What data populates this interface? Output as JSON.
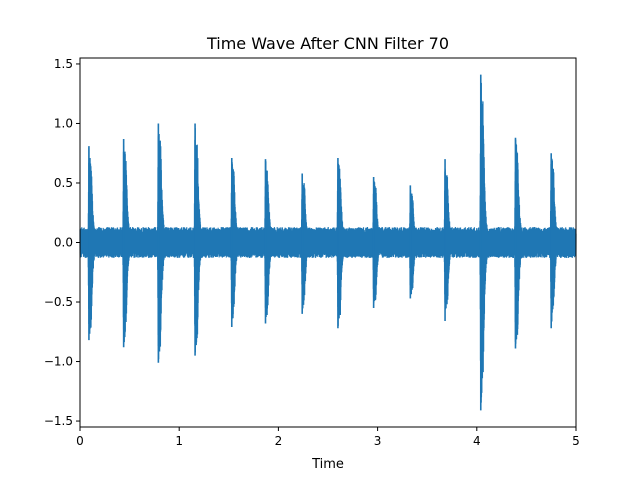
{
  "chart_data": {
    "type": "line",
    "title": "Time Wave After CNN Filter 70",
    "xlabel": "Time",
    "ylabel": "",
    "xlim": [
      0,
      5
    ],
    "ylim": [
      -1.55,
      1.55
    ],
    "x_ticks": [
      0,
      1,
      2,
      3,
      4,
      5
    ],
    "x_tick_labels": [
      "0",
      "1",
      "2",
      "3",
      "4",
      "5"
    ],
    "y_ticks": [
      -1.5,
      -1.0,
      -0.5,
      0.0,
      0.5,
      1.0,
      1.5
    ],
    "y_tick_labels": [
      "−1.5",
      "−1.0",
      "−0.5",
      "0.0",
      "0.5",
      "1.0",
      "1.5"
    ],
    "grid": false,
    "color": "#1f77b4",
    "baseline_noise_amplitude": 0.13,
    "series": [
      {
        "bursts": [
          {
            "t": 0.09,
            "max": 0.81,
            "min": -0.82
          },
          {
            "t": 0.44,
            "max": 0.87,
            "min": -0.88
          },
          {
            "t": 0.79,
            "max": 1.0,
            "min": -1.01
          },
          {
            "t": 1.16,
            "max": 1.0,
            "min": -0.95
          },
          {
            "t": 1.53,
            "max": 0.71,
            "min": -0.71
          },
          {
            "t": 1.87,
            "max": 0.7,
            "min": -0.68
          },
          {
            "t": 2.24,
            "max": 0.58,
            "min": -0.6
          },
          {
            "t": 2.6,
            "max": 0.71,
            "min": -0.72
          },
          {
            "t": 2.96,
            "max": 0.55,
            "min": -0.55
          },
          {
            "t": 3.33,
            "max": 0.48,
            "min": -0.47
          },
          {
            "t": 3.68,
            "max": 0.7,
            "min": -0.66
          },
          {
            "t": 4.04,
            "max": 1.41,
            "min": -1.41
          },
          {
            "t": 4.39,
            "max": 0.88,
            "min": -0.89
          },
          {
            "t": 4.75,
            "max": 0.75,
            "min": -0.72
          }
        ]
      }
    ]
  }
}
